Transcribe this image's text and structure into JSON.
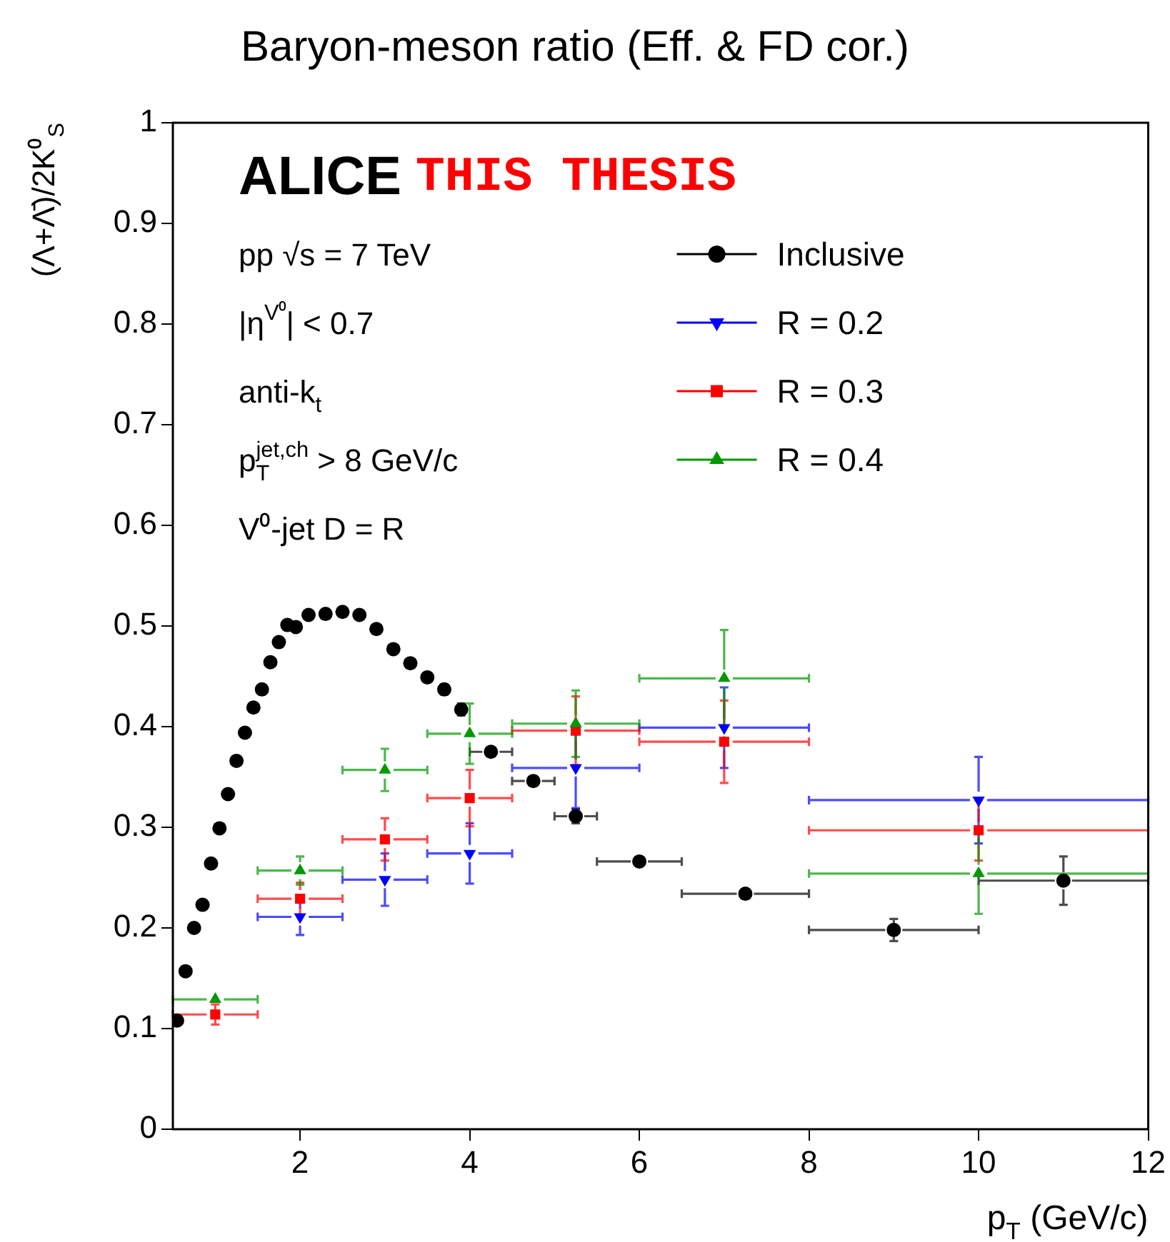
{
  "chart_data": {
    "type": "scatter",
    "title": "Baryon-meson ratio (Eff. & FD cor.)",
    "xlabel": "p$_{T}$ (GeV/c)",
    "ylabel": "(Λ+Λ̄)/2K⁰$_{S}$",
    "annotations": [
      "ALICE",
      "THIS THESIS",
      "pp √s = 7 TeV",
      "|η$^{V⁰}$| < 0.7",
      "anti-k$_{t}$",
      "p$_{T}$$^{jet,ch}$ > 8 GeV/c",
      "V⁰-jet D = R"
    ],
    "xlim": [
      0.5,
      12
    ],
    "xticks": [
      2,
      4,
      6,
      8,
      10,
      12
    ],
    "ylim": [
      0,
      1
    ],
    "yticks": [
      0,
      0.1,
      0.2,
      0.3,
      0.4,
      0.5,
      0.6,
      0.7,
      0.8,
      0.9,
      1
    ],
    "grid": false,
    "legend": "top right",
    "series": [
      {
        "name": "Inclusive",
        "color": "#000000",
        "marker": "circle",
        "x": [
          0.55,
          0.65,
          0.75,
          0.85,
          0.95,
          1.05,
          1.15,
          1.25,
          1.35,
          1.45,
          1.55,
          1.65,
          1.75,
          1.85,
          1.95,
          2.1,
          2.3,
          2.5,
          2.7,
          2.9,
          3.1,
          3.3,
          3.5,
          3.7,
          3.9,
          4.25,
          4.75,
          5.25,
          6,
          7.25,
          9,
          11
        ],
        "values": [
          0.108,
          0.157,
          0.2,
          0.223,
          0.264,
          0.299,
          0.333,
          0.366,
          0.394,
          0.419,
          0.437,
          0.464,
          0.484,
          0.501,
          0.499,
          0.511,
          0.512,
          0.514,
          0.511,
          0.497,
          0.477,
          0.463,
          0.449,
          0.437,
          0.417,
          0.375,
          0.346,
          0.311,
          0.266,
          0.234,
          0.198,
          0.247
        ],
        "xerrors": [
          null,
          null,
          null,
          null,
          null,
          null,
          null,
          null,
          null,
          null,
          null,
          null,
          null,
          null,
          null,
          null,
          null,
          null,
          null,
          null,
          null,
          null,
          null,
          null,
          null,
          0.25,
          0.25,
          0.25,
          0.5,
          0.75,
          1,
          1
        ],
        "errors": [
          null,
          null,
          null,
          null,
          null,
          null,
          null,
          null,
          null,
          null,
          null,
          null,
          null,
          null,
          null,
          null,
          null,
          null,
          null,
          null,
          null,
          null,
          null,
          0.005,
          0.006,
          null,
          null,
          0.007,
          null,
          null,
          0.011,
          0.024
        ]
      },
      {
        "name": "R = 0.2",
        "color": "#0000ff",
        "marker": "triangle-down",
        "x": [
          2,
          3,
          4,
          5.25,
          7,
          10
        ],
        "values": [
          0.211,
          0.248,
          0.274,
          0.359,
          0.399,
          0.327
        ],
        "xerrors": [
          0.5,
          0.5,
          0.5,
          0.75,
          1,
          2
        ],
        "errors": [
          0.018,
          0.026,
          0.03,
          0.04,
          0.04,
          0.043
        ]
      },
      {
        "name": "R = 0.3",
        "color": "#ff0000",
        "marker": "square",
        "x": [
          1,
          2,
          3,
          4,
          5.25,
          7,
          10
        ],
        "values": [
          0.114,
          0.229,
          0.288,
          0.329,
          0.396,
          0.385,
          0.297
        ],
        "xerrors": [
          0.5,
          0.5,
          0.5,
          0.5,
          0.75,
          1,
          2
        ],
        "errors": [
          0.01,
          0.016,
          0.021,
          0.028,
          0.034,
          0.041,
          0.03
        ]
      },
      {
        "name": "R = 0.4",
        "color": "#009900",
        "marker": "triangle",
        "x": [
          1,
          2,
          3,
          4,
          5.25,
          7,
          10
        ],
        "values": [
          0.129,
          0.257,
          0.357,
          0.393,
          0.403,
          0.448,
          0.254
        ],
        "xerrors": [
          0.5,
          0.5,
          0.5,
          0.5,
          0.75,
          1,
          2
        ],
        "errors": [
          null,
          0.014,
          0.021,
          0.03,
          0.033,
          0.048,
          0.04
        ]
      }
    ]
  }
}
